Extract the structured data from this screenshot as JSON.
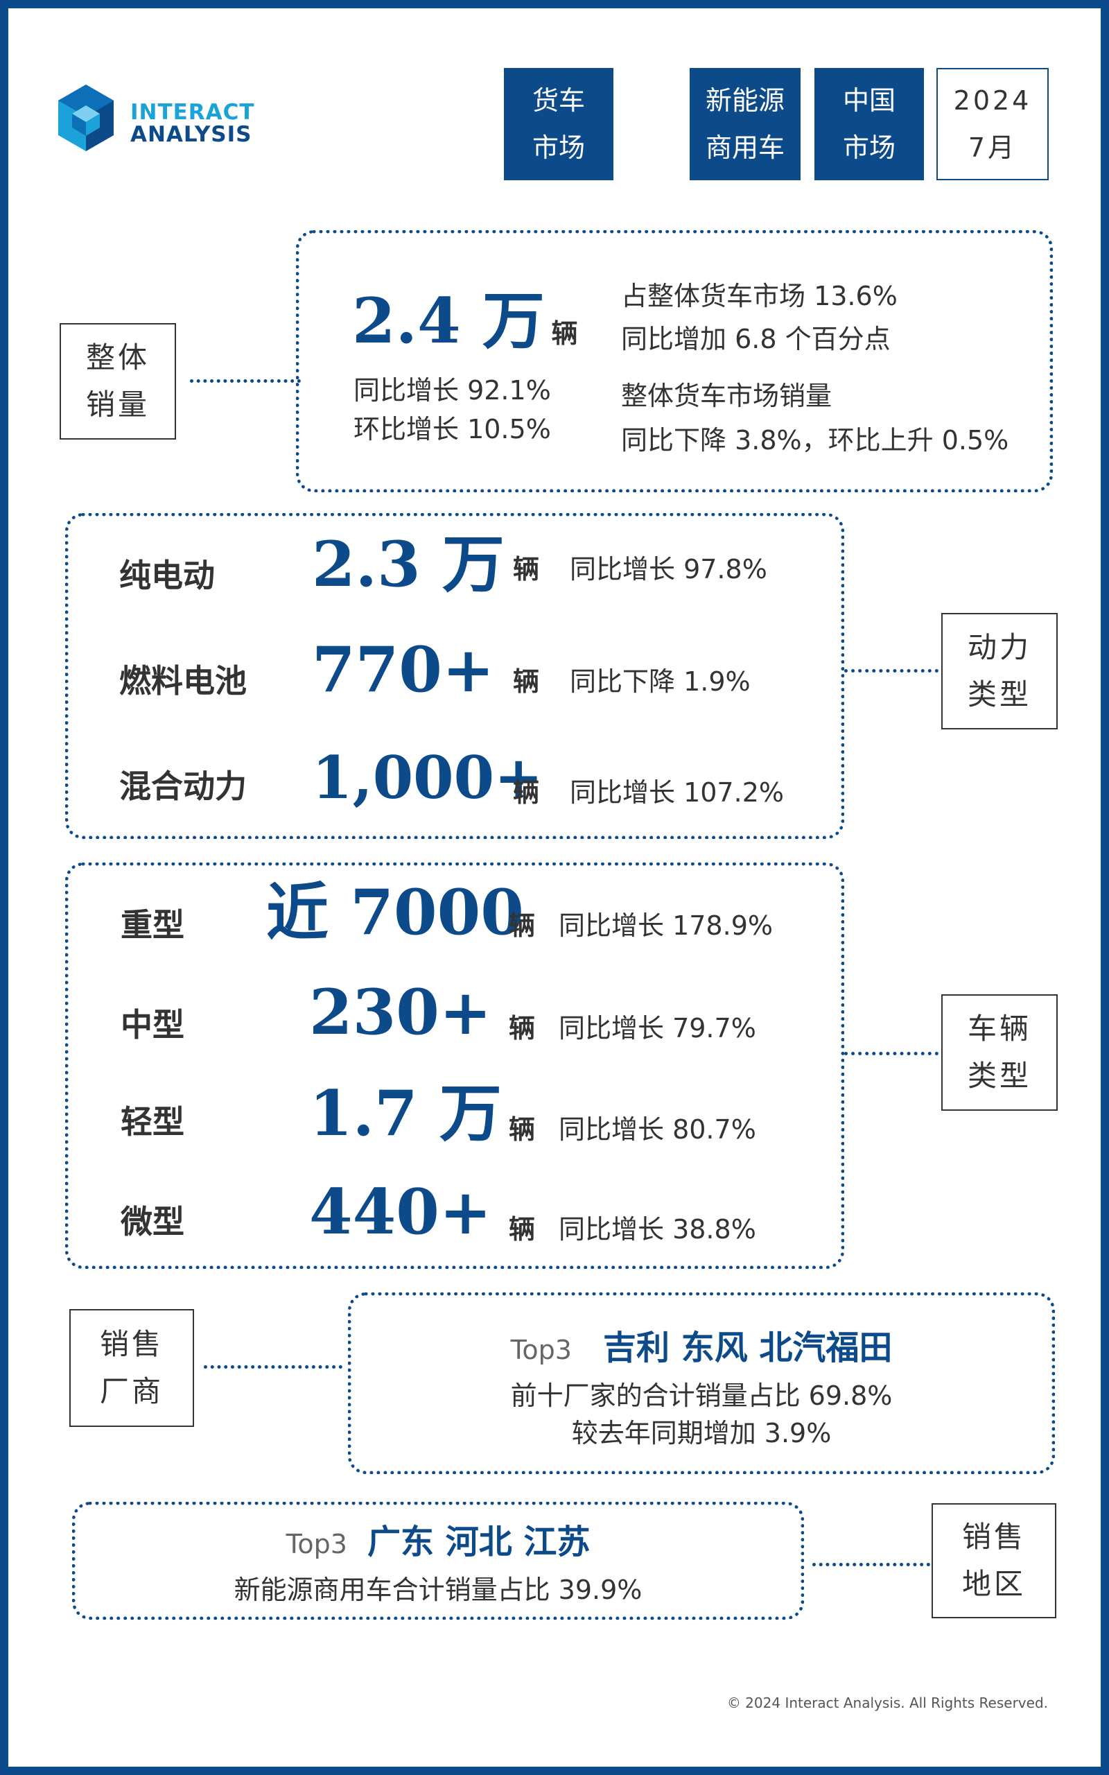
{
  "logo": {
    "line1": "INTERACT",
    "line2": "ANALYSIS"
  },
  "header_tags": [
    {
      "line1": "货车",
      "line2": "市场"
    },
    {
      "line1": "新能源",
      "line2": "商用车"
    },
    {
      "line1": "中国",
      "line2": "市场"
    },
    {
      "line1": "2024",
      "line2": "7月"
    }
  ],
  "overall": {
    "label_line1": "整体",
    "label_line2": "销量",
    "value": "2.4 万",
    "unit": "辆",
    "yoy": "同比增长 92.1%",
    "mom": "环比增长 10.5%",
    "share": "占整体货车市场 13.6%",
    "share_change": "同比增加 6.8 个百分点",
    "market_title": "整体货车市场销量",
    "market_change": "同比下降 3.8%，环比上升 0.5%"
  },
  "power": {
    "label_line1": "动力",
    "label_line2": "类型",
    "rows": [
      {
        "name": "纯电动",
        "value": "2.3 万",
        "unit": "辆",
        "change": "同比增长 97.8%"
      },
      {
        "name": "燃料电池",
        "value": "770+",
        "unit": "辆",
        "change": "同比下降 1.9%"
      },
      {
        "name": "混合动力",
        "value": "1,000+",
        "unit": "辆",
        "change": "同比增长 107.2%"
      }
    ]
  },
  "vehicle": {
    "label_line1": "车辆",
    "label_line2": "类型",
    "rows": [
      {
        "name": "重型",
        "value": "近 7000",
        "unit": "辆",
        "change": "同比增长 178.9%"
      },
      {
        "name": "中型",
        "value": "230+",
        "unit": "辆",
        "change": "同比增长 79.7%"
      },
      {
        "name": "轻型",
        "value": "1.7 万",
        "unit": "辆",
        "change": "同比增长 80.7%"
      },
      {
        "name": "微型",
        "value": "440+",
        "unit": "辆",
        "change": "同比增长 38.8%"
      }
    ]
  },
  "manufacturers": {
    "label_line1": "销售",
    "label_line2": "厂商",
    "top3_label": "Top3",
    "top3": "吉利 东风 北汽福田",
    "line1": "前十厂家的合计销量占比 69.8%",
    "line2": "较去年同期增加 3.9%"
  },
  "regions": {
    "label_line1": "销售",
    "label_line2": "地区",
    "top3_label": "Top3",
    "top3": "广东 河北 江苏",
    "line1": "新能源商用车合计销量占比 39.9%"
  },
  "copyright": "© 2024 Interact Analysis. All Rights Reserved.",
  "colors": {
    "navy": "#0d4a8a",
    "logo_cyan": "#1ba2d8",
    "text": "#333333"
  }
}
